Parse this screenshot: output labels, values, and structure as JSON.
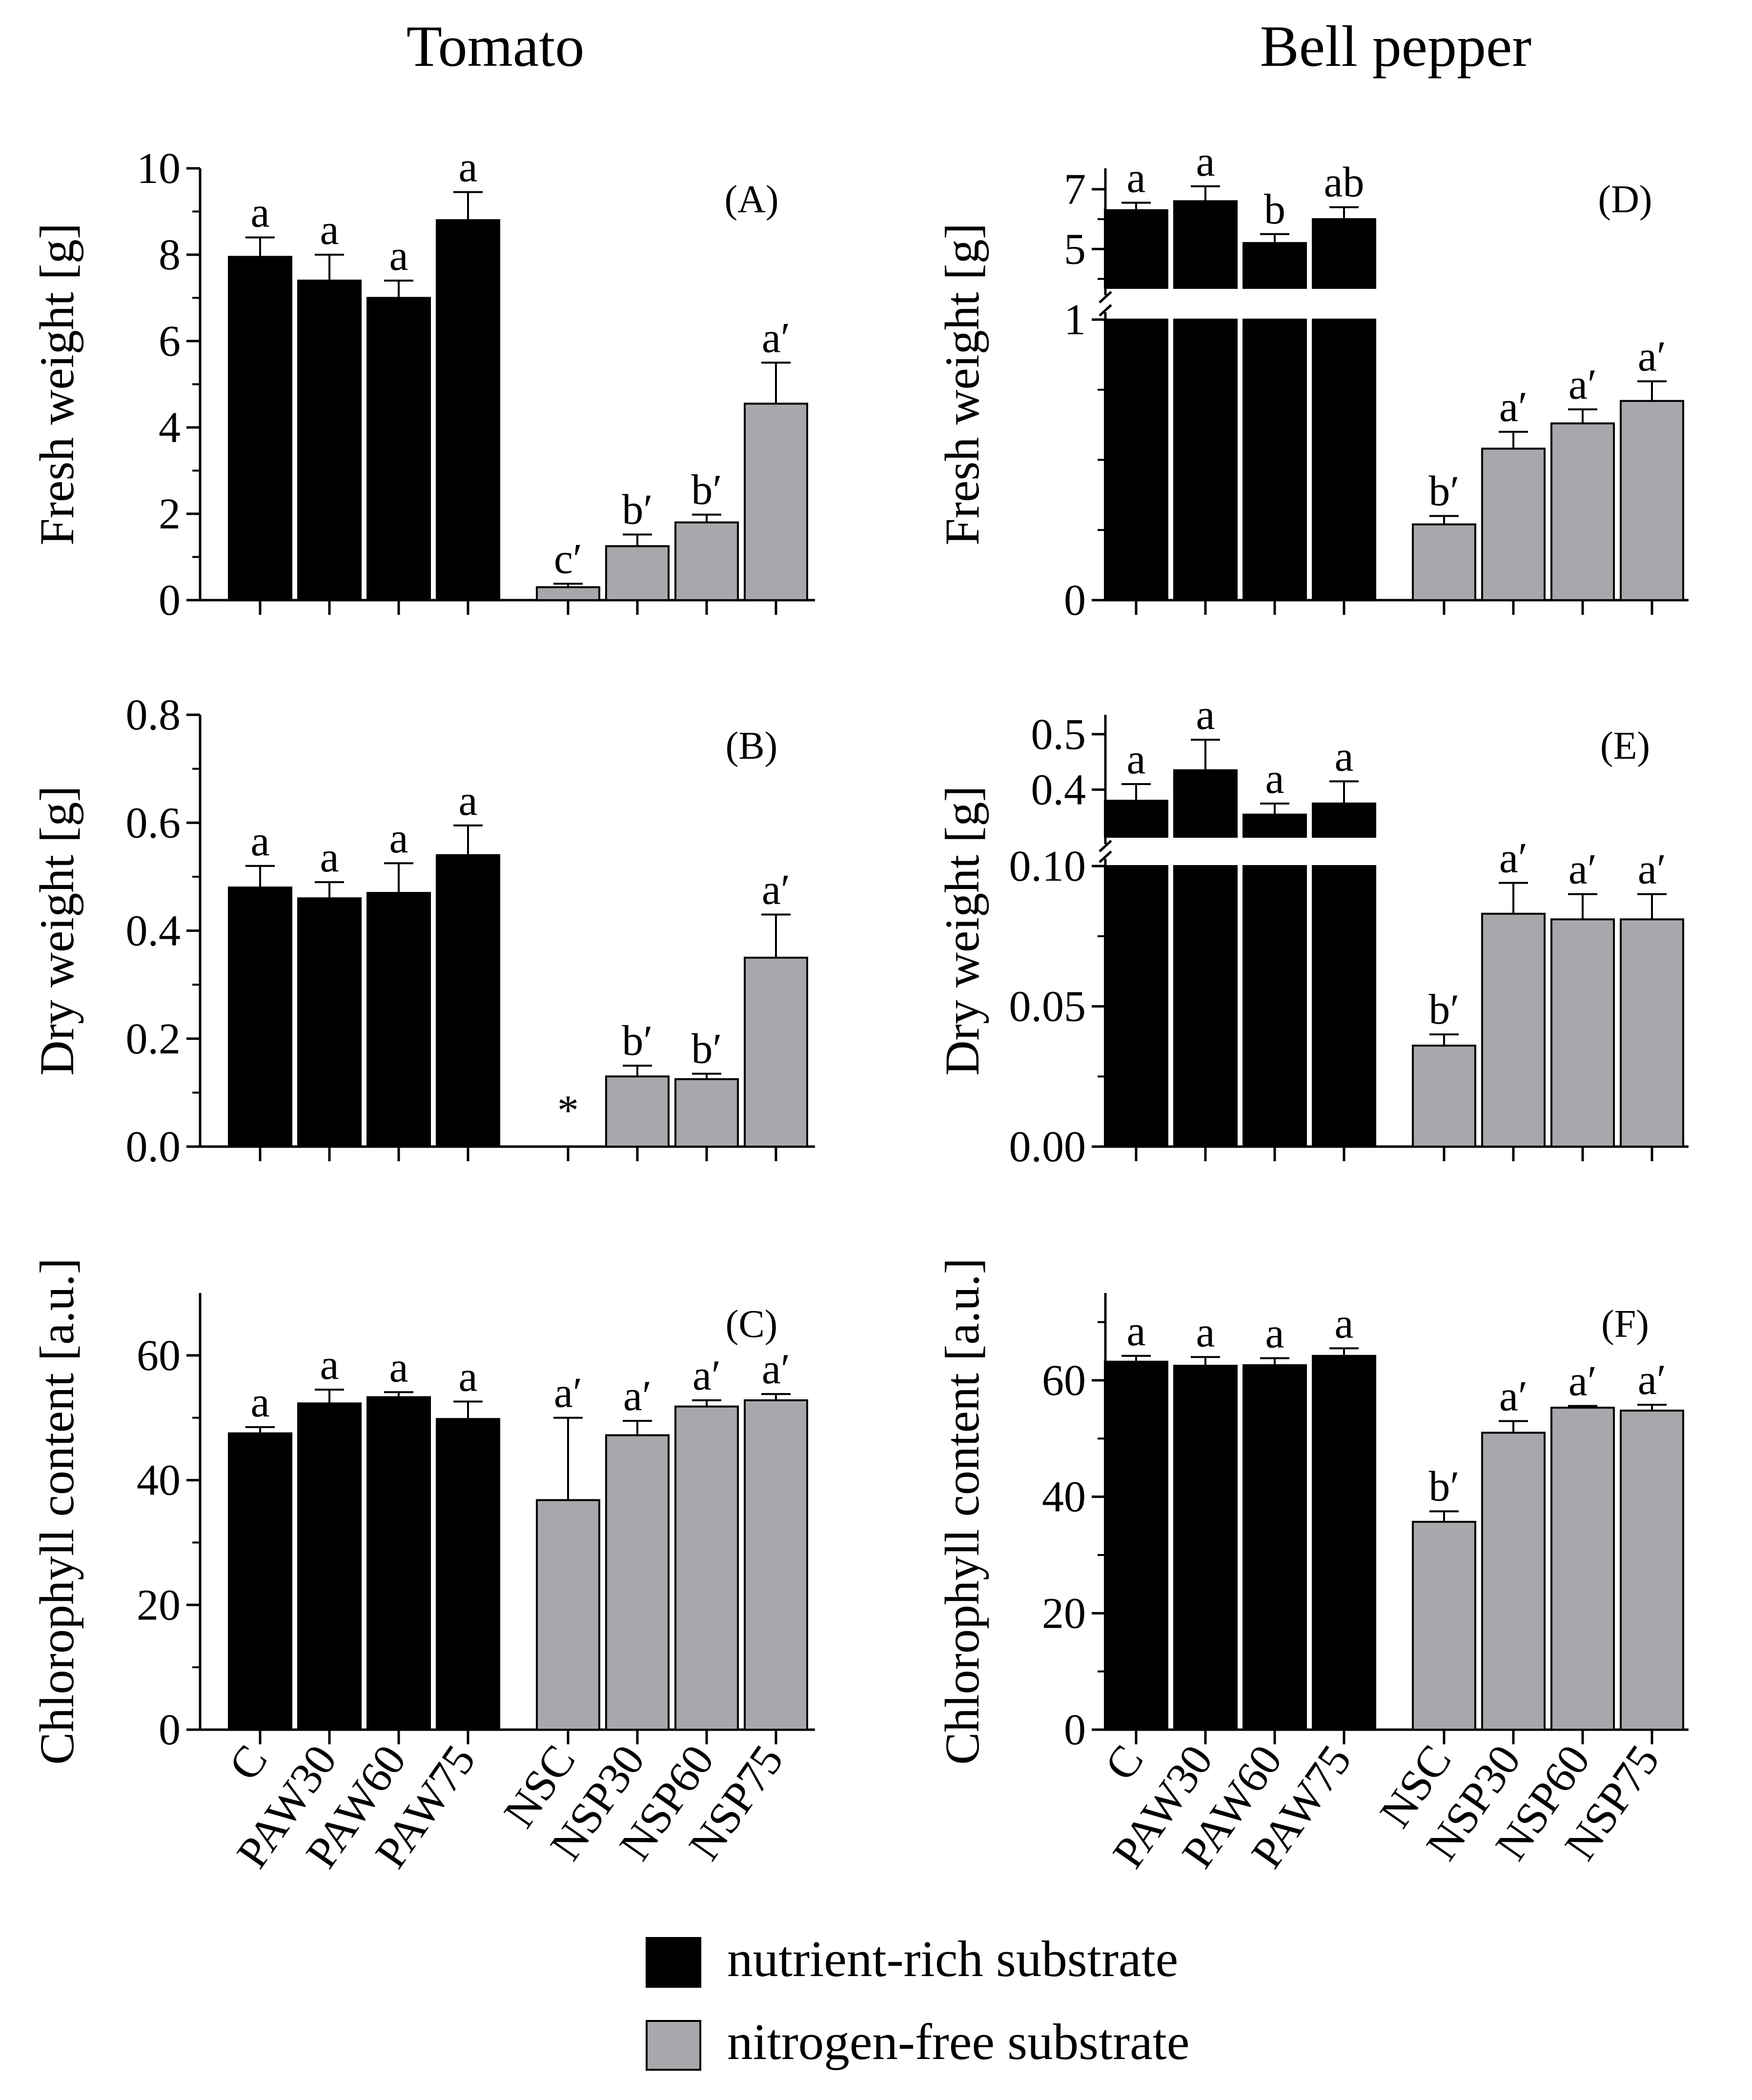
{
  "figure": {
    "column_titles": [
      "Tomato",
      "Bell pepper"
    ],
    "legend": [
      {
        "label": "nutrient-rich substrate",
        "color": "#000000"
      },
      {
        "label": "nitrogen-free substrate",
        "color": "#A6A8AB"
      }
    ]
  },
  "chart_data": [
    {
      "type": "bar",
      "panel": "(A)",
      "crop": "Tomato",
      "ylabel": "Fresh weight [g]",
      "ylim": [
        0,
        10
      ],
      "yticks": [
        0,
        2,
        4,
        6,
        8,
        10
      ],
      "categories": [
        "C",
        "PAW30",
        "PAW60",
        "PAW75",
        "NSC",
        "NSP30",
        "NSP60",
        "NSP75"
      ],
      "values": [
        7.95,
        7.4,
        7.0,
        8.8,
        0.3,
        1.25,
        1.8,
        4.55
      ],
      "errors": [
        0.45,
        0.6,
        0.4,
        0.65,
        0.08,
        0.27,
        0.18,
        0.95
      ],
      "significance": [
        "a",
        "a",
        "a",
        "a",
        "c′",
        "b′",
        "b′",
        "a′"
      ]
    },
    {
      "type": "bar",
      "panel": "(B)",
      "crop": "Tomato",
      "ylabel": "Dry weight [g]",
      "ylim": [
        0,
        0.8
      ],
      "yticks": [
        "0.0",
        "0.2",
        "0.4",
        "0.6",
        "0.8"
      ],
      "categories": [
        "C",
        "PAW30",
        "PAW60",
        "PAW75",
        "NSC",
        "NSP30",
        "NSP60",
        "NSP75"
      ],
      "values": [
        0.48,
        0.46,
        0.47,
        0.54,
        0,
        0.13,
        0.125,
        0.35
      ],
      "errors": [
        0.04,
        0.03,
        0.055,
        0.055,
        0,
        0.02,
        0.01,
        0.08
      ],
      "significance": [
        "a",
        "a",
        "a",
        "a",
        "*",
        "b′",
        "b′",
        "a′"
      ]
    },
    {
      "type": "bar",
      "panel": "(C)",
      "crop": "Tomato",
      "ylabel": "Chlorophyll content [a.u.]",
      "ylim": [
        0,
        70
      ],
      "yticks": [
        0,
        20,
        40,
        60
      ],
      "categories": [
        "C",
        "PAW30",
        "PAW60",
        "PAW75",
        "NSC",
        "NSP30",
        "NSP60",
        "NSP75"
      ],
      "values": [
        47.5,
        52.3,
        53.3,
        49.8,
        36.8,
        47.2,
        51.8,
        52.8
      ],
      "errors": [
        1.0,
        2.2,
        0.8,
        2.8,
        13.2,
        2.3,
        1.0,
        1.0
      ],
      "significance": [
        "a",
        "a",
        "a",
        "a",
        "a′",
        "a′",
        "a′",
        "a′"
      ]
    },
    {
      "type": "bar",
      "panel": "(D)",
      "crop": "Bell pepper",
      "ylabel": "Fresh weight [g]",
      "broken_axis": true,
      "ylim_lower": [
        0,
        1
      ],
      "ylim_upper": [
        3.7,
        7.7
      ],
      "yticks_lower": [
        0,
        1
      ],
      "yticks_upper": [
        5,
        7
      ],
      "categories": [
        "C",
        "PAW30",
        "PAW60",
        "PAW75",
        "NSC",
        "NSP30",
        "NSP60",
        "NSP75"
      ],
      "values": [
        6.3,
        6.6,
        5.2,
        6.0,
        0.27,
        0.54,
        0.63,
        0.71
      ],
      "errors": [
        0.25,
        0.5,
        0.3,
        0.4,
        0.03,
        0.06,
        0.05,
        0.07
      ],
      "significance": [
        "a",
        "a",
        "b",
        "ab",
        "b′",
        "a′",
        "a′",
        "a′"
      ]
    },
    {
      "type": "bar",
      "panel": "(E)",
      "crop": "Bell pepper",
      "ylabel": "Dry weight [g]",
      "broken_axis": true,
      "ylim_lower": [
        0,
        0.1
      ],
      "ylim_upper": [
        0.315,
        0.535
      ],
      "yticks_lower": [
        "0.00",
        "0.05",
        "0.10"
      ],
      "yticks_upper": [
        "0.4",
        "0.5"
      ],
      "categories": [
        "C",
        "PAW30",
        "PAW60",
        "PAW75",
        "NSC",
        "NSP30",
        "NSP60",
        "NSP75"
      ],
      "values": [
        0.38,
        0.435,
        0.355,
        0.375,
        0.036,
        0.083,
        0.081,
        0.081
      ],
      "errors": [
        0.03,
        0.055,
        0.02,
        0.04,
        0.004,
        0.011,
        0.009,
        0.009
      ],
      "significance": [
        "a",
        "a",
        "a",
        "a",
        "b′",
        "a′",
        "a′",
        "a′"
      ]
    },
    {
      "type": "bar",
      "panel": "(F)",
      "crop": "Bell pepper",
      "ylabel": "Chlorophyll content [a.u.]",
      "ylim": [
        0,
        75
      ],
      "yticks": [
        0,
        20,
        40,
        60
      ],
      "categories": [
        "C",
        "PAW30",
        "PAW60",
        "PAW75",
        "NSC",
        "NSP30",
        "NSP60",
        "NSP75"
      ],
      "values": [
        63.2,
        62.5,
        62.6,
        64.2,
        35.7,
        51.0,
        55.3,
        54.8
      ],
      "errors": [
        1.0,
        1.5,
        1.2,
        1.3,
        1.8,
        2.0,
        0.3,
        1.0
      ],
      "significance": [
        "a",
        "a",
        "a",
        "a",
        "b′",
        "a′",
        "a′",
        "a′"
      ]
    }
  ]
}
